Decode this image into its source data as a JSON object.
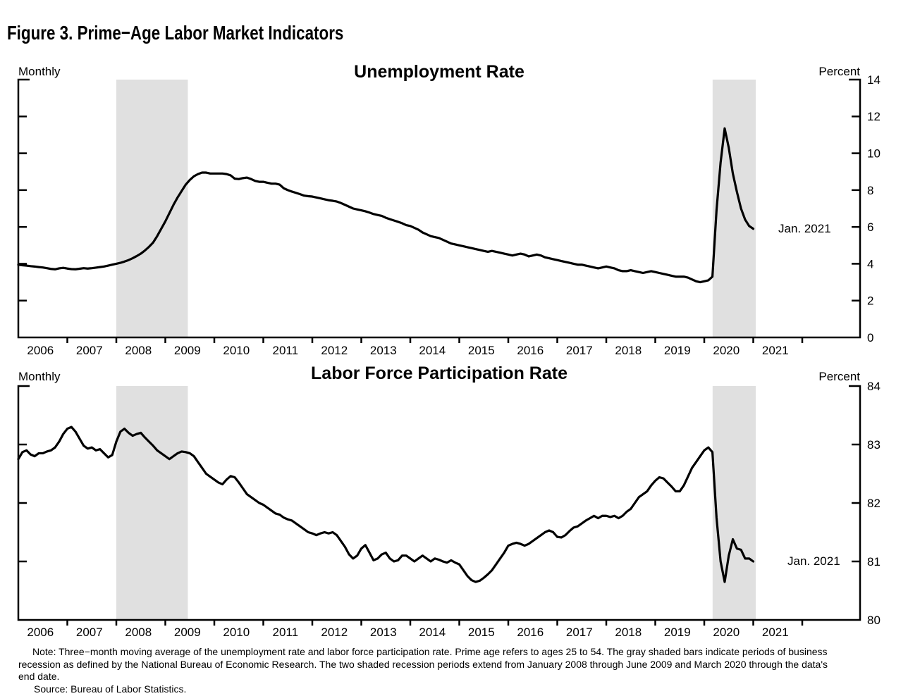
{
  "figure_title": "Figure 3. Prime−Age Labor Market Indicators",
  "note_text": "Note: Three−month moving average of the unemployment rate and labor force participation rate. Prime age refers to ages 25 to 54. The gray shaded bars indicate periods of business recession as defined by the National Bureau of Economic Research. The two shaded recession periods extend from January 2008 through June 2009 and March 2020 through the data's end date.",
  "source_text": "Source: Bureau of Labor Statistics.",
  "colors": {
    "line": "#000000",
    "recession_shade": "#e0e0e0",
    "text": "#000000",
    "background": "#ffffff"
  },
  "chart_data": [
    {
      "type": "line",
      "title": "Unemployment Rate",
      "left_label": "Monthly",
      "right_label": "Percent",
      "annotation": "Jan. 2021",
      "x_start": 2006.0,
      "x_interval_years": 0.0833333,
      "x_axis_years": [
        2006,
        2007,
        2008,
        2009,
        2010,
        2011,
        2012,
        2013,
        2014,
        2015,
        2016,
        2017,
        2018,
        2019,
        2020,
        2021
      ],
      "ylim": [
        0,
        14
      ],
      "yticks": [
        0,
        2,
        4,
        6,
        8,
        10,
        12,
        14
      ],
      "grid": false,
      "legend": "none",
      "recession_bands": [
        [
          2008.0,
          2009.46
        ],
        [
          2020.17,
          2021.05
        ]
      ],
      "values": [
        3.95,
        3.92,
        3.9,
        3.87,
        3.85,
        3.82,
        3.8,
        3.76,
        3.72,
        3.7,
        3.75,
        3.78,
        3.74,
        3.71,
        3.7,
        3.73,
        3.76,
        3.74,
        3.76,
        3.79,
        3.82,
        3.85,
        3.9,
        3.95,
        4.0,
        4.05,
        4.12,
        4.2,
        4.3,
        4.42,
        4.55,
        4.72,
        4.92,
        5.15,
        5.5,
        5.9,
        6.3,
        6.75,
        7.2,
        7.6,
        7.95,
        8.3,
        8.55,
        8.75,
        8.87,
        8.95,
        8.95,
        8.9,
        8.9,
        8.9,
        8.9,
        8.87,
        8.8,
        8.62,
        8.6,
        8.65,
        8.68,
        8.6,
        8.5,
        8.45,
        8.45,
        8.4,
        8.35,
        8.35,
        8.3,
        8.1,
        8.0,
        7.92,
        7.85,
        7.78,
        7.7,
        7.67,
        7.65,
        7.6,
        7.55,
        7.5,
        7.45,
        7.42,
        7.38,
        7.3,
        7.2,
        7.1,
        7.0,
        6.95,
        6.9,
        6.85,
        6.78,
        6.7,
        6.65,
        6.6,
        6.5,
        6.42,
        6.35,
        6.28,
        6.2,
        6.1,
        6.05,
        5.95,
        5.85,
        5.7,
        5.6,
        5.5,
        5.45,
        5.4,
        5.3,
        5.2,
        5.1,
        5.05,
        5.0,
        4.95,
        4.9,
        4.85,
        4.8,
        4.75,
        4.7,
        4.65,
        4.7,
        4.65,
        4.6,
        4.55,
        4.5,
        4.45,
        4.5,
        4.55,
        4.5,
        4.4,
        4.45,
        4.5,
        4.45,
        4.35,
        4.3,
        4.25,
        4.2,
        4.15,
        4.1,
        4.05,
        4.0,
        3.95,
        3.95,
        3.9,
        3.85,
        3.8,
        3.75,
        3.8,
        3.85,
        3.8,
        3.75,
        3.65,
        3.6,
        3.6,
        3.65,
        3.6,
        3.55,
        3.5,
        3.55,
        3.6,
        3.55,
        3.5,
        3.45,
        3.4,
        3.35,
        3.3,
        3.3,
        3.3,
        3.25,
        3.15,
        3.05,
        3.0,
        3.05,
        3.1,
        3.3,
        6.9,
        9.5,
        11.35,
        10.3,
        8.9,
        7.9,
        7.0,
        6.4,
        6.05,
        5.9
      ]
    },
    {
      "type": "line",
      "title": "Labor Force Participation Rate",
      "left_label": "Monthly",
      "right_label": "Percent",
      "annotation": "Jan. 2021",
      "x_start": 2006.0,
      "x_interval_years": 0.0833333,
      "x_axis_years": [
        2006,
        2007,
        2008,
        2009,
        2010,
        2011,
        2012,
        2013,
        2014,
        2015,
        2016,
        2017,
        2018,
        2019,
        2020,
        2021
      ],
      "ylim": [
        80,
        84
      ],
      "yticks": [
        80,
        81,
        82,
        83,
        84
      ],
      "grid": false,
      "legend": "none",
      "recession_bands": [
        [
          2008.0,
          2009.46
        ],
        [
          2020.17,
          2021.05
        ]
      ],
      "values": [
        82.75,
        82.87,
        82.9,
        82.83,
        82.8,
        82.85,
        82.85,
        82.88,
        82.9,
        82.95,
        83.05,
        83.18,
        83.27,
        83.3,
        83.22,
        83.1,
        82.98,
        82.93,
        82.95,
        82.9,
        82.92,
        82.85,
        82.78,
        82.82,
        83.05,
        83.22,
        83.27,
        83.2,
        83.15,
        83.18,
        83.2,
        83.12,
        83.05,
        82.98,
        82.9,
        82.85,
        82.8,
        82.75,
        82.8,
        82.85,
        82.88,
        82.87,
        82.85,
        82.8,
        82.7,
        82.6,
        82.5,
        82.45,
        82.4,
        82.35,
        82.32,
        82.4,
        82.46,
        82.44,
        82.35,
        82.25,
        82.15,
        82.1,
        82.05,
        82.0,
        81.97,
        81.92,
        81.87,
        81.82,
        81.8,
        81.75,
        81.72,
        81.7,
        81.65,
        81.6,
        81.55,
        81.5,
        81.48,
        81.45,
        81.48,
        81.5,
        81.48,
        81.5,
        81.45,
        81.35,
        81.25,
        81.12,
        81.05,
        81.1,
        81.22,
        81.28,
        81.15,
        81.02,
        81.05,
        81.12,
        81.15,
        81.05,
        81.0,
        81.02,
        81.1,
        81.1,
        81.05,
        81.0,
        81.05,
        81.1,
        81.05,
        81.0,
        81.05,
        81.03,
        81.0,
        80.98,
        81.02,
        80.98,
        80.95,
        80.85,
        80.75,
        80.68,
        80.65,
        80.67,
        80.72,
        80.78,
        80.85,
        80.95,
        81.05,
        81.15,
        81.27,
        81.3,
        81.32,
        81.3,
        81.27,
        81.3,
        81.35,
        81.4,
        81.45,
        81.5,
        81.53,
        81.5,
        81.42,
        81.41,
        81.45,
        81.52,
        81.58,
        81.6,
        81.65,
        81.7,
        81.74,
        81.78,
        81.74,
        81.78,
        81.78,
        81.76,
        81.78,
        81.74,
        81.78,
        81.85,
        81.9,
        82.0,
        82.1,
        82.15,
        82.2,
        82.3,
        82.38,
        82.44,
        82.42,
        82.35,
        82.28,
        82.2,
        82.2,
        82.3,
        82.45,
        82.6,
        82.7,
        82.8,
        82.9,
        82.95,
        82.87,
        81.75,
        81.0,
        80.65,
        81.1,
        81.38,
        81.22,
        81.2,
        81.05,
        81.05,
        81.0
      ]
    }
  ]
}
